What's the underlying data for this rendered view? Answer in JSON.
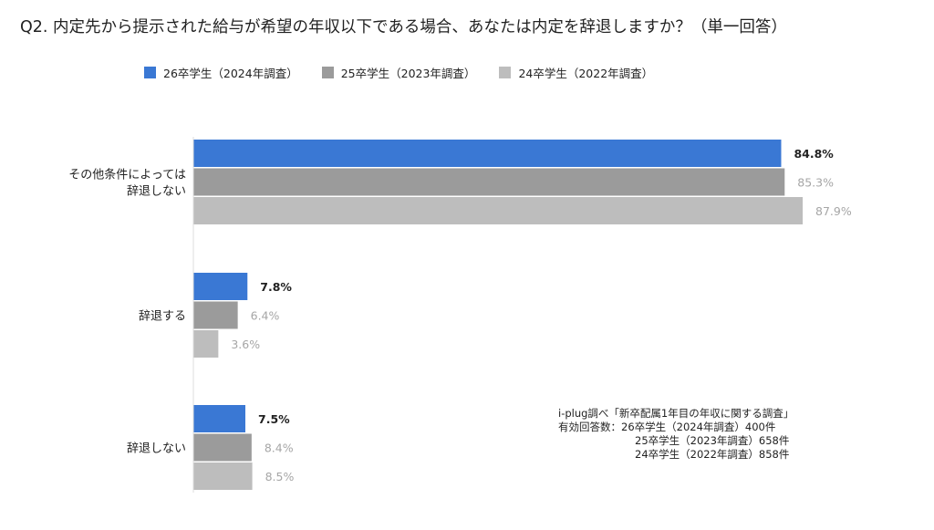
{
  "title": "Q2. 内定先から提示された給与が希望の年収以下である場合、あなたは内定を辞退しますか？（単一回答）",
  "legend": [
    {
      "label": "26卒学生（2024年調査）",
      "color": "#3a78d4"
    },
    {
      "label": "25卒学生（2023年調査）",
      "color": "#9b9b9b"
    },
    {
      "label": "24卒学生（2022年調査）",
      "color": "#bdbdbd"
    }
  ],
  "chart_data": {
    "type": "bar",
    "orientation": "horizontal",
    "categories": [
      [
        "その他条件によっては",
        "辞退しない"
      ],
      [
        "辞退する"
      ],
      [
        "辞退しない"
      ]
    ],
    "series": [
      {
        "name": "26卒学生（2024年調査）",
        "color": "#3a78d4",
        "values": [
          84.8,
          7.8,
          7.5
        ],
        "labels": [
          "84.8%",
          "7.8%",
          "7.5%"
        ],
        "label_color": "#222222",
        "bold": true
      },
      {
        "name": "25卒学生（2023年調査）",
        "color": "#9b9b9b",
        "values": [
          85.3,
          6.4,
          8.4
        ],
        "labels": [
          "85.3%",
          "6.4%",
          "8.4%"
        ],
        "label_color": "#a6a6a6",
        "bold": false
      },
      {
        "name": "24卒学生（2022年調査）",
        "color": "#bdbdbd",
        "values": [
          87.9,
          3.6,
          8.5
        ],
        "labels": [
          "87.9%",
          "3.6%",
          "8.5%"
        ],
        "label_color": "#a6a6a6",
        "bold": false
      }
    ],
    "xlim": [
      0,
      100
    ],
    "grid": false,
    "legend_position": "top-left"
  },
  "note": {
    "source": "i-plug調べ「新卒配属1年目の年収に関する調査」",
    "sample_label": "有効回答数：",
    "samples": [
      "26卒学生（2024年調査）400件",
      "25卒学生（2023年調査）658件",
      "24卒学生（2022年調査）858件"
    ]
  }
}
